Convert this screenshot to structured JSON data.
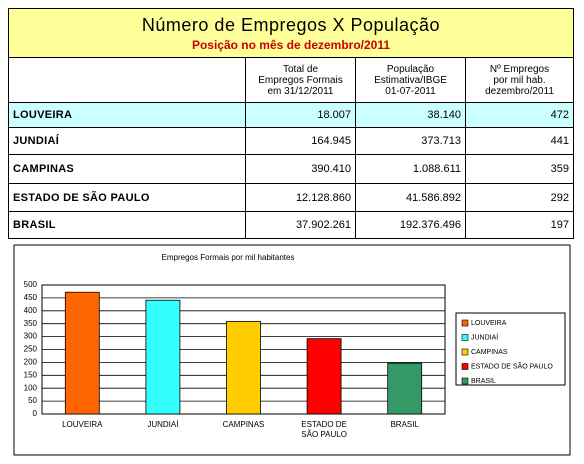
{
  "header": {
    "title": "Número de Empregos X População",
    "subtitle": "Posição no mês de dezembro/2011"
  },
  "table": {
    "columns": [
      "Total de\nEmpregos Formais\nem 31/12/2011",
      "População\nEstimativa/IBGE\n01-07-2011",
      "Nº Empregos\npor mil hab.\ndezembro/2011"
    ],
    "rows": [
      [
        "LOUVEIRA",
        "18.007",
        "38.140",
        "472"
      ],
      [
        "JUNDIAÍ",
        "164.945",
        "373.713",
        "441"
      ],
      [
        "CAMPINAS",
        "390.410",
        "1.088.611",
        "359"
      ],
      [
        "ESTADO DE SÃO PAULO",
        "12.128.860",
        "41.586.892",
        "292"
      ],
      [
        "BRASIL",
        "37.902.261",
        "192.376.496",
        "197"
      ]
    ]
  },
  "chart_data": {
    "type": "bar",
    "title": "Empregos Formais por mil habitantes",
    "categories": [
      "LOUVEIRA",
      "JUNDIAÍ",
      "CAMPINAS",
      "ESTADO DE SÃO PAULO",
      "BRASIL"
    ],
    "values": [
      472,
      441,
      359,
      292,
      197
    ],
    "colors": [
      "#ff6600",
      "#33ffff",
      "#ffcc00",
      "#ff0000",
      "#339966"
    ],
    "ylim": [
      0,
      500
    ],
    "yticks": [
      0,
      50,
      100,
      150,
      200,
      250,
      300,
      350,
      400,
      450,
      500
    ],
    "grid": true,
    "legend": "right"
  }
}
